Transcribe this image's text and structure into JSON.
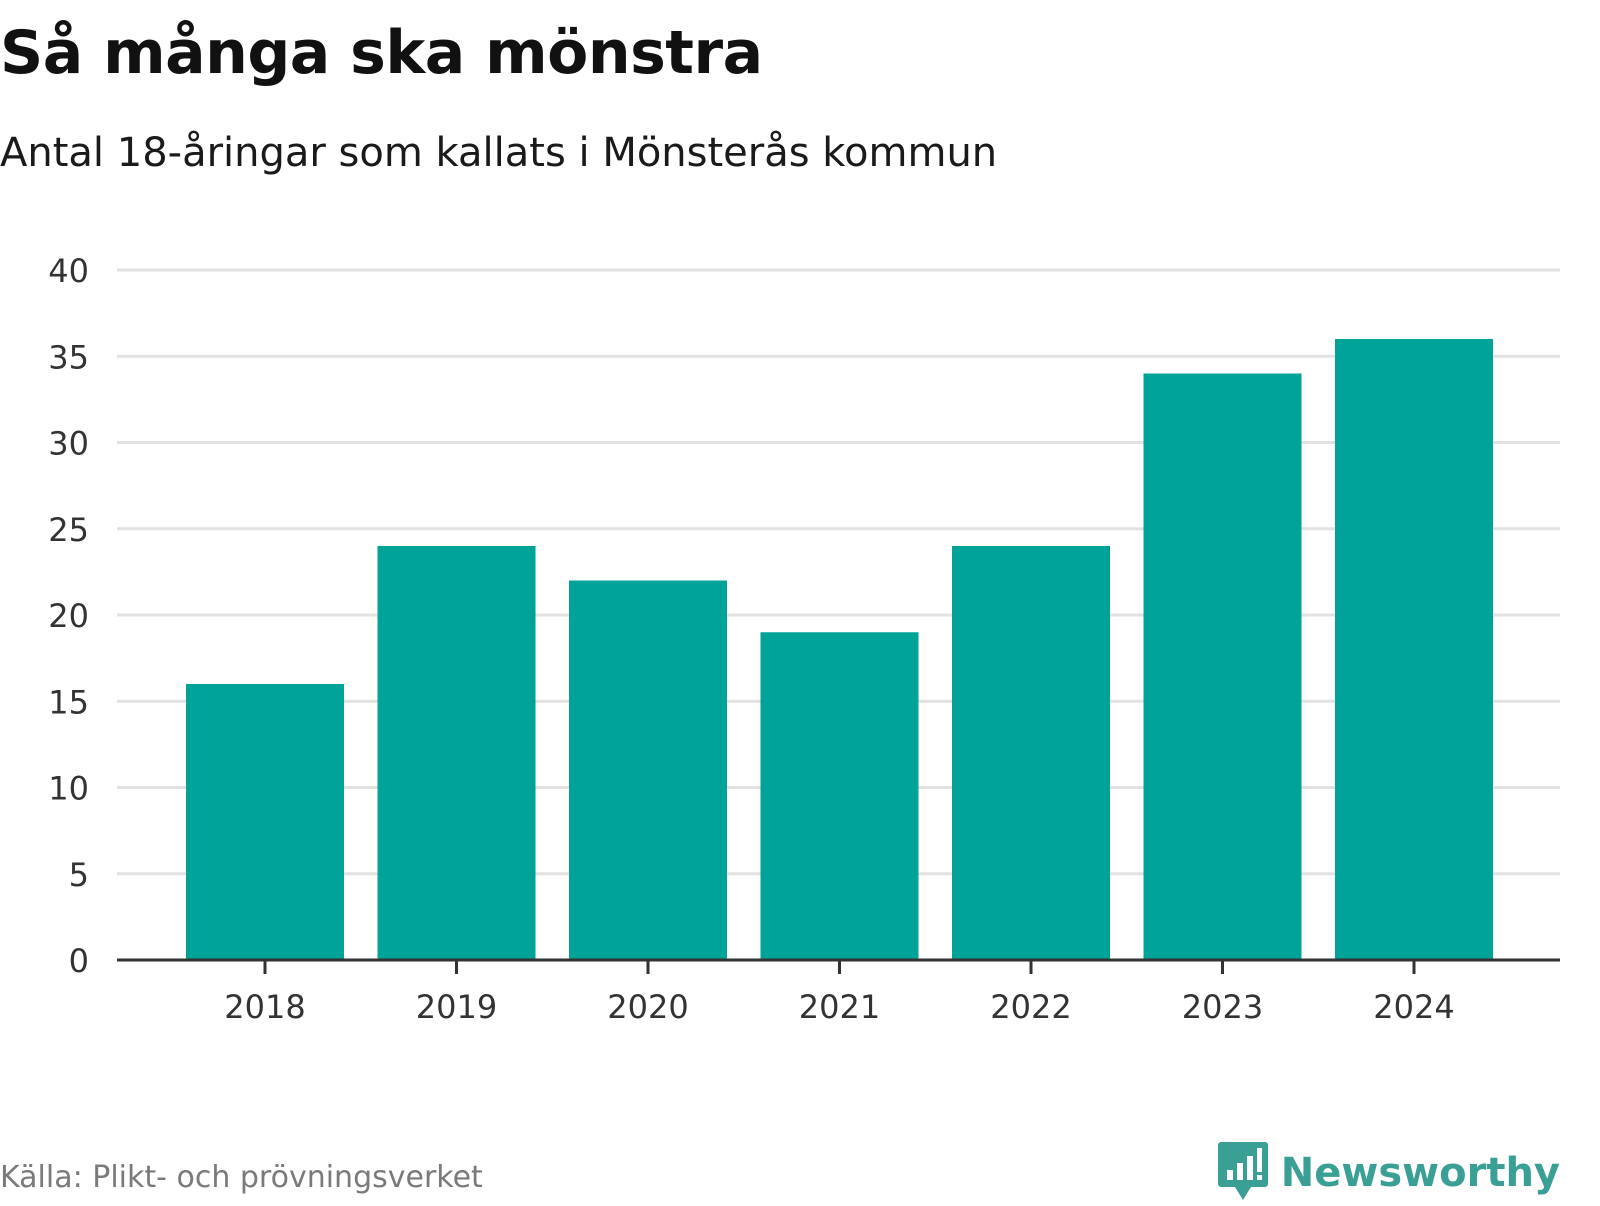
{
  "header": {
    "title": "Så många ska mönstra",
    "subtitle": "Antal 18-åringar som kallats i Mönsterås kommun"
  },
  "footer": {
    "source": "Källa: Plikt- och prövningsverket",
    "brand": "Newsworthy",
    "brand_icon": "newsworthy-logo-icon"
  },
  "colors": {
    "bar": "#00a398",
    "grid": "#e2e2e2",
    "axis": "#333333",
    "tick_text": "#333333",
    "brand": "#3a9f94"
  },
  "chart_data": {
    "type": "bar",
    "categories": [
      "2018",
      "2019",
      "2020",
      "2021",
      "2022",
      "2023",
      "2024"
    ],
    "values": [
      16,
      24,
      22,
      19,
      24,
      34,
      36
    ],
    "ylim": [
      0,
      40
    ],
    "yticks": [
      0,
      5,
      10,
      15,
      20,
      25,
      30,
      35,
      40
    ],
    "xlabel": "",
    "ylabel": "",
    "grid": true,
    "legend": false
  }
}
